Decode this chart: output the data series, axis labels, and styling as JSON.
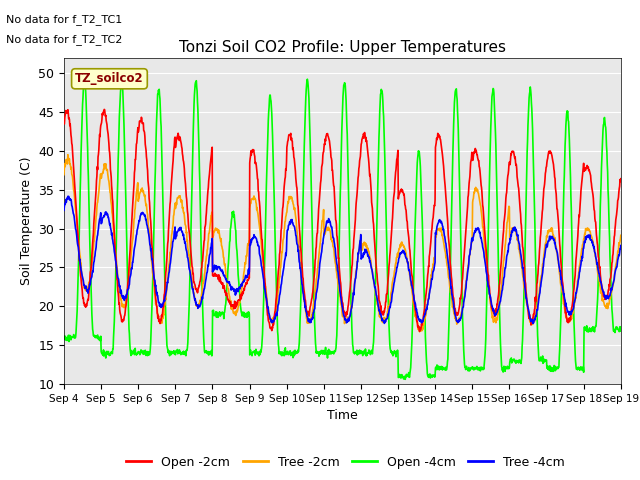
{
  "title": "Tonzi Soil CO2 Profile: Upper Temperatures",
  "ylabel": "Soil Temperature (C)",
  "xlabel": "Time",
  "annotations": [
    "No data for f_T2_TC1",
    "No data for f_T2_TC2"
  ],
  "legend_label": "TZ_soilco2",
  "ylim": [
    10,
    52
  ],
  "yticks": [
    10,
    15,
    20,
    25,
    30,
    35,
    40,
    45,
    50
  ],
  "series_colors": [
    "red",
    "orange",
    "lime",
    "blue"
  ],
  "series_labels": [
    "Open -2cm",
    "Tree -2cm",
    "Open -4cm",
    "Tree -4cm"
  ],
  "line_width": 1.2,
  "background_color": "#e8e8e8",
  "n_days": 15,
  "x_tick_labels": [
    "Sep 4",
    "Sep 5",
    "Sep 6",
    "Sep 7",
    "Sep 8",
    "Sep 9",
    "Sep 10",
    "Sep 11",
    "Sep 12",
    "Sep 13",
    "Sep 14",
    "Sep 15",
    "Sep 16",
    "Sep 17",
    "Sep 18",
    "Sep 19"
  ],
  "day_peaks_open2": [
    45,
    45,
    44,
    42,
    24,
    40,
    42,
    42,
    42,
    35,
    42,
    40,
    40,
    40,
    38
  ],
  "day_troughs_open2": [
    20,
    18,
    18,
    22,
    20,
    17,
    19,
    19,
    19,
    17,
    19,
    19,
    18,
    18,
    21
  ],
  "day_peaks_tree2": [
    39,
    38,
    35,
    34,
    30,
    34,
    34,
    30,
    28,
    28,
    30,
    35,
    30,
    30,
    30
  ],
  "day_troughs_tree2": [
    22,
    20,
    18,
    20,
    19,
    18,
    18,
    18,
    18,
    17,
    18,
    18,
    18,
    18,
    20
  ],
  "day_peaks_open4": [
    49,
    49,
    48,
    49,
    32,
    47,
    49,
    49,
    48,
    40,
    48,
    48,
    48,
    45,
    44
  ],
  "day_troughs_open4": [
    16,
    14,
    14,
    14,
    19,
    14,
    14,
    14,
    14,
    11,
    12,
    12,
    13,
    12,
    17
  ],
  "day_peaks_tree4": [
    34,
    32,
    32,
    30,
    25,
    29,
    31,
    31,
    27,
    27,
    31,
    30,
    30,
    29,
    29
  ],
  "day_troughs_tree4": [
    22,
    21,
    20,
    20,
    22,
    18,
    18,
    18,
    18,
    18,
    18,
    19,
    18,
    19,
    21
  ]
}
